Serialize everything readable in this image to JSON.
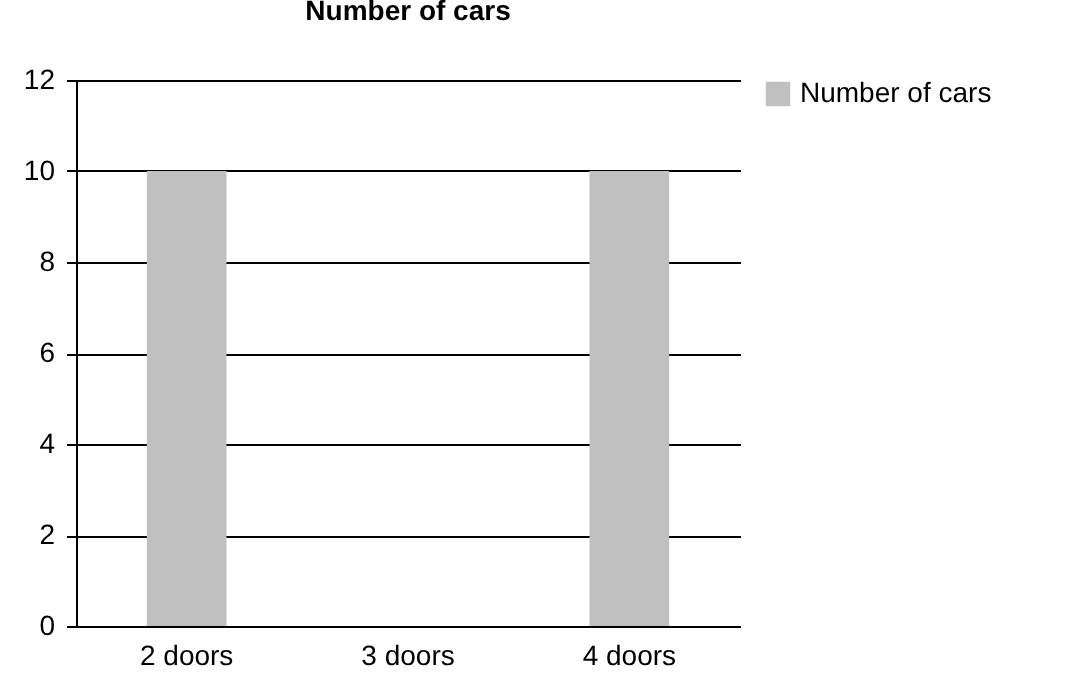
{
  "chart_data": {
    "type": "bar",
    "title": "Number of cars",
    "categories": [
      "2 doors",
      "3 doors",
      "4 doors"
    ],
    "series": [
      {
        "name": "Number of cars",
        "color": "#c0c0c0",
        "values": [
          10,
          0,
          10
        ]
      }
    ],
    "ylim": [
      0,
      12
    ],
    "yticks": [
      0,
      2,
      4,
      6,
      8,
      10,
      12
    ],
    "grid": "y",
    "legend": "right"
  }
}
